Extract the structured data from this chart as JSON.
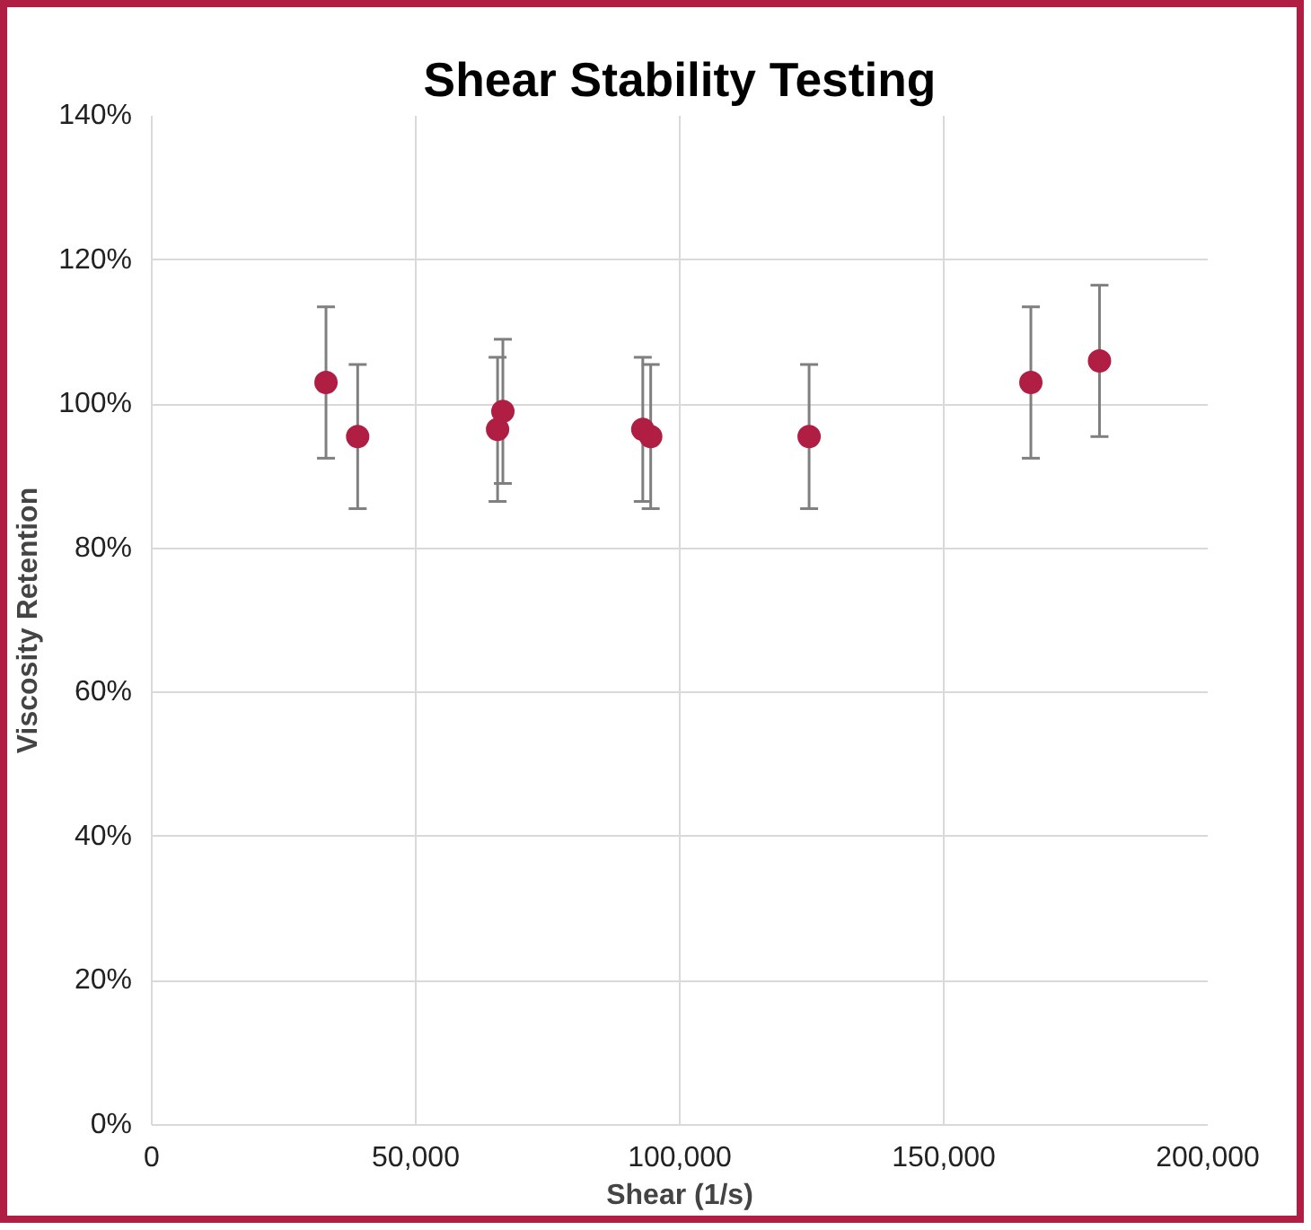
{
  "chart_data": {
    "type": "scatter",
    "title": "Shear Stability Testing",
    "xlabel": "Shear (1/s)",
    "ylabel": "Viscosity Retention",
    "x": [
      33000,
      39000,
      65500,
      66500,
      93000,
      94500,
      124500,
      166500,
      179500
    ],
    "series": [
      {
        "color": "#b01e44",
        "values": [
          103,
          95.5,
          96.5,
          99,
          96.5,
          95.5,
          95.5,
          103,
          106
        ],
        "errors": [
          10.5,
          10,
          10,
          10,
          10,
          10,
          10,
          10.5,
          10.5
        ]
      }
    ],
    "xlim": [
      0,
      200000
    ],
    "xticks": [
      0,
      {
        "value": 50000,
        "label": "50,000"
      },
      {
        "value": 100000,
        "label": "100,000"
      },
      {
        "value": 150000,
        "label": "150,000"
      },
      {
        "value": 200000,
        "label": "200,000"
      }
    ],
    "ylim": [
      0,
      140
    ],
    "yticks": [
      {
        "value": 0,
        "label": "0%"
      },
      {
        "value": 20,
        "label": "20%"
      },
      {
        "value": 40,
        "label": "40%"
      },
      {
        "value": 60,
        "label": "60%"
      },
      {
        "value": 80,
        "label": "80%"
      },
      {
        "value": 100,
        "label": "100%"
      },
      {
        "value": 120,
        "label": "120%"
      },
      {
        "value": 140,
        "label": "140%"
      }
    ],
    "grid": true,
    "marker": "circle"
  }
}
